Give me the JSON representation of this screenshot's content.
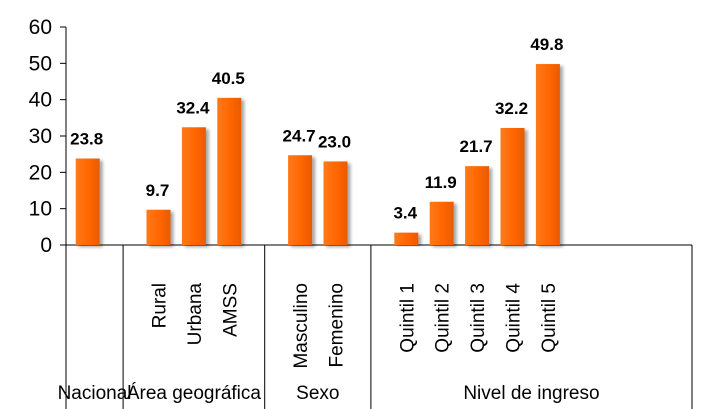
{
  "chart_data": {
    "type": "bar",
    "title": "",
    "xlabel": "",
    "ylabel": "",
    "ylim": [
      0,
      60
    ],
    "yticks": [
      0,
      10,
      20,
      30,
      40,
      50,
      60
    ],
    "grid": false,
    "legend": "none",
    "bar_color": "#FF6600",
    "groups": [
      {
        "label": "Nacional",
        "categories": [
          ""
        ],
        "values": [
          23.8
        ],
        "value_labels": [
          "23.8"
        ]
      },
      {
        "label": "Área geográfica",
        "categories": [
          "Rural",
          "Urbana",
          "AMSS"
        ],
        "values": [
          9.7,
          32.4,
          40.5
        ],
        "value_labels": [
          "9.7",
          "32.4",
          "40.5"
        ]
      },
      {
        "label": "Sexo",
        "categories": [
          "Masculino",
          "Femenino"
        ],
        "values": [
          24.7,
          23.0
        ],
        "value_labels": [
          "24.7",
          "23.0"
        ]
      },
      {
        "label": "Nivel de ingreso",
        "categories": [
          "Quintil 1",
          "Quintil 2",
          "Quintil 3",
          "Quintil 4",
          "Quintil 5"
        ],
        "values": [
          3.4,
          11.9,
          21.7,
          32.2,
          49.8
        ],
        "value_labels": [
          "3.4",
          "11.9",
          "21.7",
          "32.2",
          "49.8"
        ]
      }
    ]
  }
}
